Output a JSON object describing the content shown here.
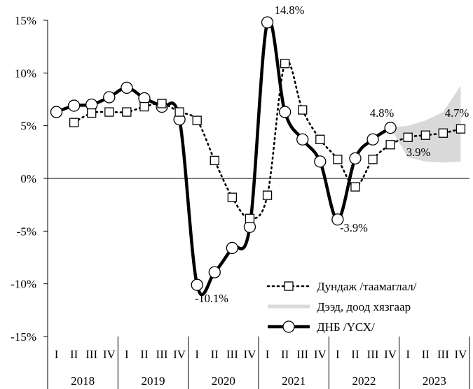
{
  "chart_data": {
    "type": "line",
    "title": "",
    "xlabel": "",
    "ylabel": "",
    "ylim": [
      -15,
      15
    ],
    "yticks": [
      15,
      10,
      5,
      0,
      -5,
      -10,
      -15
    ],
    "ytick_format": "%",
    "quarter_labels": [
      "I",
      "II",
      "III",
      "IV"
    ],
    "years": [
      "2018",
      "2019",
      "2020",
      "2021",
      "2022",
      "2023"
    ],
    "series": [
      {
        "name": "ДНБ /ҮСХ/",
        "style": "solid-circle",
        "color": "#000000",
        "values": [
          6.3,
          6.9,
          7.0,
          7.7,
          8.6,
          7.6,
          6.8,
          5.6,
          -10.1,
          -8.9,
          -6.6,
          -4.6,
          14.8,
          6.3,
          3.7,
          1.6,
          -3.9,
          1.9,
          3.7,
          4.8,
          null,
          null,
          null,
          null
        ]
      },
      {
        "name": "Дундаж /таамаглал/",
        "style": "dotted-square",
        "color": "#000000",
        "values": [
          null,
          5.3,
          6.2,
          6.3,
          6.3,
          6.8,
          7.1,
          6.3,
          5.5,
          1.7,
          -1.8,
          -3.8,
          -1.6,
          10.9,
          6.5,
          3.7,
          1.8,
          -0.8,
          1.8,
          3.2,
          3.9,
          4.1,
          4.3,
          4.7
        ]
      },
      {
        "name": "Дээд, доод хязгаар",
        "style": "band",
        "color": "#d9d9d9",
        "upper": [
          4.8,
          5.0,
          5.5,
          6.3,
          8.8
        ],
        "lower": [
          4.8,
          2.0,
          1.6,
          1.5,
          1.6
        ]
      }
    ],
    "annotations": [
      "14.8%",
      "4.8%",
      "4.7%",
      "3.9%",
      "-3.9%",
      "-10.1%"
    ],
    "legend_position": "bottom-right",
    "grid": false
  }
}
